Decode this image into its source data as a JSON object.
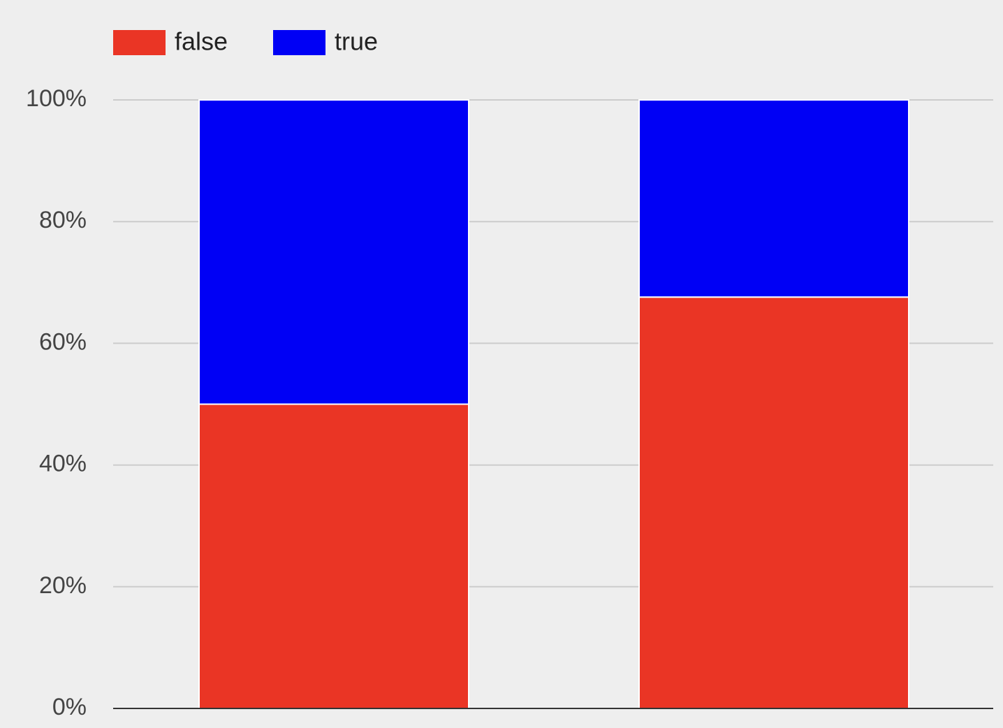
{
  "chart_data": {
    "type": "bar",
    "stacked": true,
    "normalized": true,
    "categories": [
      "",
      ""
    ],
    "series": [
      {
        "name": "false",
        "values": [
          50,
          67.6
        ],
        "color": "#ea3525"
      },
      {
        "name": "true",
        "values": [
          50,
          32.4
        ],
        "color": "#0000f5"
      }
    ],
    "ylim": [
      0,
      100
    ],
    "y_ticks": [
      0,
      20,
      40,
      60,
      80,
      100
    ],
    "y_tick_labels": [
      "0%",
      "20%",
      "40%",
      "60%",
      "80%",
      "100%"
    ],
    "grid": true,
    "legend": "top-left",
    "title": "",
    "xlabel": "",
    "ylabel": ""
  }
}
